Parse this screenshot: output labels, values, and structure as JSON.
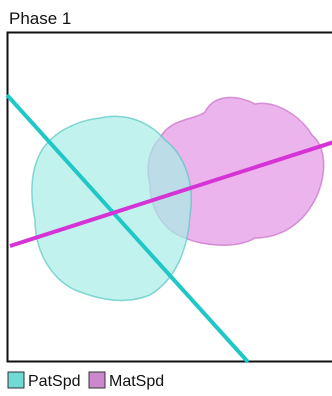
{
  "title": "Phase 1",
  "legend": [
    {
      "label": "PatSpd",
      "color": "#6fd9d3"
    },
    {
      "label": "MatSpd",
      "color": "#cc88cc"
    }
  ]
}
